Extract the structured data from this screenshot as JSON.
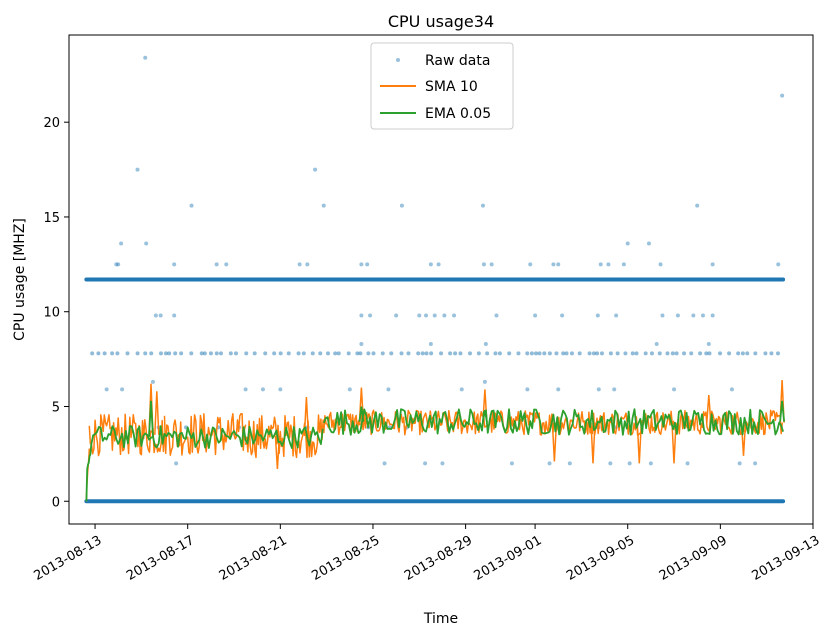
{
  "chart_data": {
    "type": "line",
    "title": "CPU usage34",
    "xlabel": "Time",
    "ylabel": "CPU usage [MHZ]",
    "xlim": [
      "2013-08-11T21:00",
      "2013-09-13T00:00"
    ],
    "ylim": [
      -1.2,
      24.6
    ],
    "x_ticks": [
      "2013-08-13",
      "2013-08-17",
      "2013-08-21",
      "2013-08-25",
      "2013-08-29",
      "2013-09-01",
      "2013-09-05",
      "2013-09-09",
      "2013-09-13"
    ],
    "y_ticks": [
      0,
      5,
      10,
      15,
      20
    ],
    "data_range": [
      "2013-08-12T15:00",
      "2013-09-11T17:00"
    ],
    "legend_position": "top-center",
    "grid": false,
    "series": [
      {
        "name": "Raw data",
        "style": "points",
        "color": "#1f77b4",
        "dense_levels": [
          0,
          11.7
        ],
        "frequent_levels": [
          3.9,
          7.8
        ],
        "points": [
          [
            "2013-08-15T04:00",
            23.4
          ],
          [
            "2013-09-11T16:00",
            21.4
          ],
          [
            "2013-08-14T20:00",
            17.5
          ],
          [
            "2013-08-22T12:00",
            17.5
          ],
          [
            "2013-08-17T04:00",
            15.6
          ],
          [
            "2013-08-22T21:00",
            15.6
          ],
          [
            "2013-08-26T06:00",
            15.6
          ],
          [
            "2013-08-29T18:00",
            15.6
          ],
          [
            "2013-09-08T00:00",
            15.6
          ],
          [
            "2013-08-14T03:00",
            13.6
          ],
          [
            "2013-08-15T05:00",
            13.6
          ],
          [
            "2013-09-05T00:00",
            13.6
          ],
          [
            "2013-09-05T22:00",
            13.6
          ],
          [
            "2013-08-13T22:00",
            12.5
          ],
          [
            "2013-08-14T00:00",
            12.5
          ],
          [
            "2013-08-16T10:00",
            12.5
          ],
          [
            "2013-08-18T06:00",
            12.5
          ],
          [
            "2013-08-18T16:00",
            12.5
          ],
          [
            "2013-08-21T20:00",
            12.5
          ],
          [
            "2013-08-22T04:00",
            12.5
          ],
          [
            "2013-08-24T12:00",
            12.5
          ],
          [
            "2013-08-24T18:00",
            12.5
          ],
          [
            "2013-08-27T12:00",
            12.5
          ],
          [
            "2013-08-27T20:00",
            12.5
          ],
          [
            "2013-08-29T19:00",
            12.5
          ],
          [
            "2013-08-30T03:00",
            12.5
          ],
          [
            "2013-08-31T19:00",
            12.5
          ],
          [
            "2013-09-01T19:00",
            12.5
          ],
          [
            "2013-09-02T00:00",
            12.5
          ],
          [
            "2013-09-03T20:00",
            12.5
          ],
          [
            "2013-09-04T04:00",
            12.5
          ],
          [
            "2013-09-04T20:00",
            12.5
          ],
          [
            "2013-09-06T10:00",
            12.5
          ],
          [
            "2013-09-08T16:00",
            12.5
          ],
          [
            "2013-09-11T12:00",
            12.5
          ],
          [
            "2013-08-15T15:00",
            9.8
          ],
          [
            "2013-08-15T20:00",
            9.8
          ],
          [
            "2013-08-16T10:00",
            9.8
          ],
          [
            "2013-08-24T12:00",
            9.8
          ],
          [
            "2013-08-24T21:00",
            9.8
          ],
          [
            "2013-08-26T00:00",
            9.8
          ],
          [
            "2013-08-27T00:00",
            9.8
          ],
          [
            "2013-08-27T07:00",
            9.8
          ],
          [
            "2013-08-27T16:00",
            9.8
          ],
          [
            "2013-08-28T02:00",
            9.8
          ],
          [
            "2013-08-28T12:00",
            9.8
          ],
          [
            "2013-08-30T08:00",
            9.8
          ],
          [
            "2013-09-01T00:00",
            9.8
          ],
          [
            "2013-09-02T04:00",
            9.8
          ],
          [
            "2013-09-03T17:00",
            9.8
          ],
          [
            "2013-09-04T12:00",
            9.8
          ],
          [
            "2013-09-06T12:00",
            9.8
          ],
          [
            "2013-09-07T04:00",
            9.8
          ],
          [
            "2013-09-07T20:00",
            9.8
          ],
          [
            "2013-09-08T06:00",
            9.8
          ],
          [
            "2013-09-08T16:00",
            9.8
          ],
          [
            "2013-08-24T12:00",
            8.3
          ],
          [
            "2013-08-27T12:00",
            8.3
          ],
          [
            "2013-08-29T21:00",
            8.3
          ],
          [
            "2013-09-06T06:00",
            8.3
          ],
          [
            "2013-09-08T12:00",
            8.3
          ],
          [
            "2013-08-15T12:00",
            6.3
          ],
          [
            "2013-08-29T20:00",
            6.3
          ],
          [
            "2013-08-13T12:00",
            5.9
          ],
          [
            "2013-08-14T04:00",
            5.9
          ],
          [
            "2013-08-19T12:00",
            5.9
          ],
          [
            "2013-08-20T06:00",
            5.9
          ],
          [
            "2013-08-21T00:00",
            5.9
          ],
          [
            "2013-08-24T00:00",
            5.9
          ],
          [
            "2013-08-25T16:00",
            5.9
          ],
          [
            "2013-08-28T20:00",
            5.9
          ],
          [
            "2013-08-31T16:00",
            5.9
          ],
          [
            "2013-09-02T00:00",
            5.9
          ],
          [
            "2013-09-03T18:00",
            5.9
          ],
          [
            "2013-09-04T10:00",
            5.9
          ],
          [
            "2013-09-07T00:00",
            5.9
          ],
          [
            "2013-09-09T12:00",
            5.9
          ],
          [
            "2013-08-16T12:00",
            2.0
          ],
          [
            "2013-08-25T12:00",
            2.0
          ],
          [
            "2013-08-27T06:00",
            2.0
          ],
          [
            "2013-08-28T00:00",
            2.0
          ],
          [
            "2013-08-31T00:00",
            2.0
          ],
          [
            "2013-09-01T15:00",
            2.0
          ],
          [
            "2013-09-02T12:00",
            2.0
          ],
          [
            "2013-09-04T06:00",
            2.0
          ],
          [
            "2013-09-05T02:00",
            2.0
          ],
          [
            "2013-09-06T00:00",
            2.0
          ],
          [
            "2013-09-07T14:00",
            2.0
          ],
          [
            "2013-09-09T20:00",
            2.0
          ],
          [
            "2013-09-10T12:00",
            2.0
          ]
        ]
      },
      {
        "name": "SMA 10",
        "style": "line",
        "color": "#ff7f0e",
        "segments": [
          {
            "from": "2013-08-12T15:00",
            "to": "2013-08-12T18:00",
            "start": 0,
            "low": 0.5,
            "high": 3.0
          },
          {
            "from": "2013-08-12T18:00",
            "to": "2013-08-16T00:00",
            "low": 2.4,
            "high": 4.6
          },
          {
            "from": "2013-08-16T00:00",
            "to": "2013-08-19T12:00",
            "low": 2.4,
            "high": 4.7
          },
          {
            "from": "2013-08-19T12:00",
            "to": "2013-08-22T21:00",
            "low": 2.3,
            "high": 4.6
          },
          {
            "from": "2013-08-22T21:00",
            "to": "2013-09-11T17:00",
            "low": 3.5,
            "high": 4.8
          }
        ],
        "spikes": [
          [
            "2013-08-15T10:00",
            6.2
          ],
          [
            "2013-08-15T16:00",
            5.8
          ],
          [
            "2013-08-20T21:00",
            1.7
          ],
          [
            "2013-08-22T03:00",
            5.5
          ],
          [
            "2013-08-24T12:00",
            6.0
          ],
          [
            "2013-08-29T20:00",
            5.9
          ],
          [
            "2013-09-01T20:00",
            2.1
          ],
          [
            "2013-09-03T12:00",
            2.0
          ],
          [
            "2013-09-05T12:00",
            2.0
          ],
          [
            "2013-09-07T00:00",
            2.0
          ],
          [
            "2013-09-08T12:00",
            5.6
          ],
          [
            "2013-09-10T00:00",
            2.4
          ],
          [
            "2013-09-11T16:00",
            6.4
          ]
        ]
      },
      {
        "name": "EMA 0.05",
        "style": "line",
        "color": "#2ca02c",
        "segments": [
          {
            "from": "2013-08-12T15:00",
            "to": "2013-08-12T20:00",
            "start": 0,
            "low": 1.5,
            "high": 3.0
          },
          {
            "from": "2013-08-12T20:00",
            "to": "2013-08-22T21:00",
            "low": 2.8,
            "high": 4.0
          },
          {
            "from": "2013-08-22T21:00",
            "to": "2013-09-11T17:00",
            "low": 3.5,
            "high": 4.9
          }
        ],
        "spikes": [
          [
            "2013-08-15T10:00",
            5.3
          ],
          [
            "2013-08-24T12:00",
            5.0
          ],
          [
            "2013-08-29T20:00",
            4.8
          ],
          [
            "2013-09-11T16:00",
            5.3
          ]
        ]
      }
    ]
  }
}
